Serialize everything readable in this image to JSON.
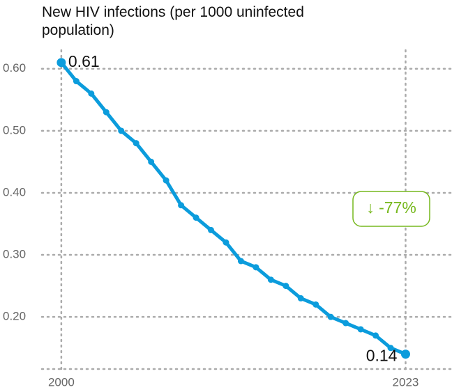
{
  "chart_data": {
    "type": "line",
    "title": "New HIV infections (per 1000 uninfected population)",
    "x": [
      2000,
      2001,
      2002,
      2003,
      2004,
      2005,
      2006,
      2007,
      2008,
      2009,
      2010,
      2011,
      2012,
      2013,
      2014,
      2015,
      2016,
      2017,
      2018,
      2019,
      2020,
      2021,
      2022,
      2023
    ],
    "series": [
      {
        "name": "New HIV infections",
        "color": "#0b9cdc",
        "values": [
          0.61,
          0.58,
          0.56,
          0.53,
          0.5,
          0.48,
          0.45,
          0.42,
          0.38,
          0.36,
          0.34,
          0.32,
          0.29,
          0.28,
          0.26,
          0.25,
          0.23,
          0.22,
          0.2,
          0.19,
          0.18,
          0.17,
          0.15,
          0.14
        ]
      }
    ],
    "xlim": [
      1998.7,
      2026.1
    ],
    "xticks": [
      2000,
      2023
    ],
    "ylim": [
      0.116,
      0.63
    ],
    "yticks": [
      {
        "value": 0.2,
        "label": "0.20"
      },
      {
        "value": 0.3,
        "label": "0.30"
      },
      {
        "value": 0.4,
        "label": "0.40"
      },
      {
        "value": 0.5,
        "label": "0.50"
      },
      {
        "value": 0.6,
        "label": "0.60"
      }
    ],
    "grid": true,
    "annotation": {
      "text": "↓ -77%",
      "color": "#77b81e"
    }
  }
}
